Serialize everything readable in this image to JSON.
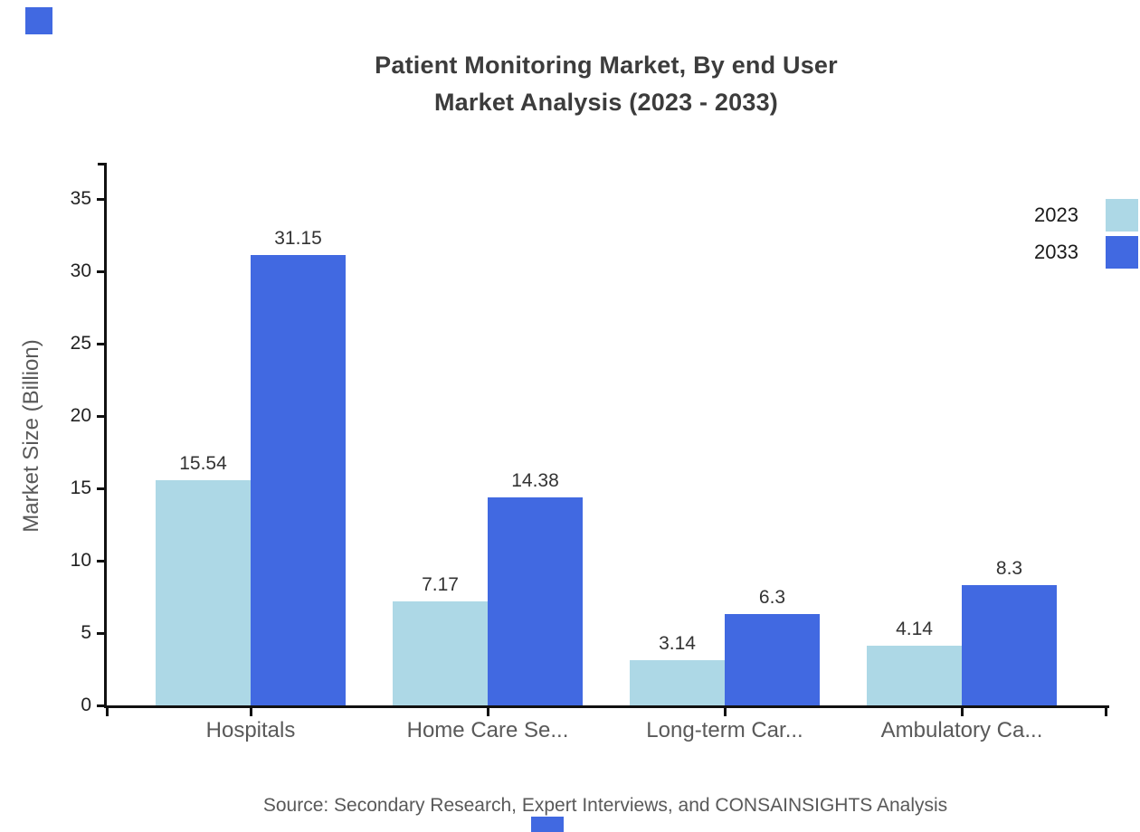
{
  "title": {
    "line1": "Patient Monitoring Market, By end User",
    "line2": "Market Analysis (2023 - 2033)"
  },
  "chart_data": {
    "type": "bar",
    "categories": [
      "Hospitals",
      "Home Care Se...",
      "Long-term Car...",
      "Ambulatory Ca..."
    ],
    "series": [
      {
        "name": "2023",
        "color": "#ADD8E6",
        "values": [
          15.54,
          7.17,
          3.14,
          4.14
        ]
      },
      {
        "name": "2033",
        "color": "#4169E1",
        "values": [
          31.15,
          14.38,
          6.3,
          8.3
        ]
      }
    ],
    "ylabel": "Market Size (Billion)",
    "xlabel": "",
    "yticks": [
      0,
      5,
      10,
      15,
      20,
      25,
      30,
      35
    ],
    "ylim": [
      0,
      37.5
    ],
    "grid": false,
    "legend_position": "top-right",
    "value_labels": true
  },
  "source": "Source: Secondary Research, Expert Interviews, and CONSAINSIGHTS Analysis",
  "colors": {
    "series_2023": "#ADD8E6",
    "series_2033": "#4169E1",
    "axis": "#111111",
    "value_text": "#333333",
    "muted_text": "#595959",
    "decor": "#4169E1"
  }
}
